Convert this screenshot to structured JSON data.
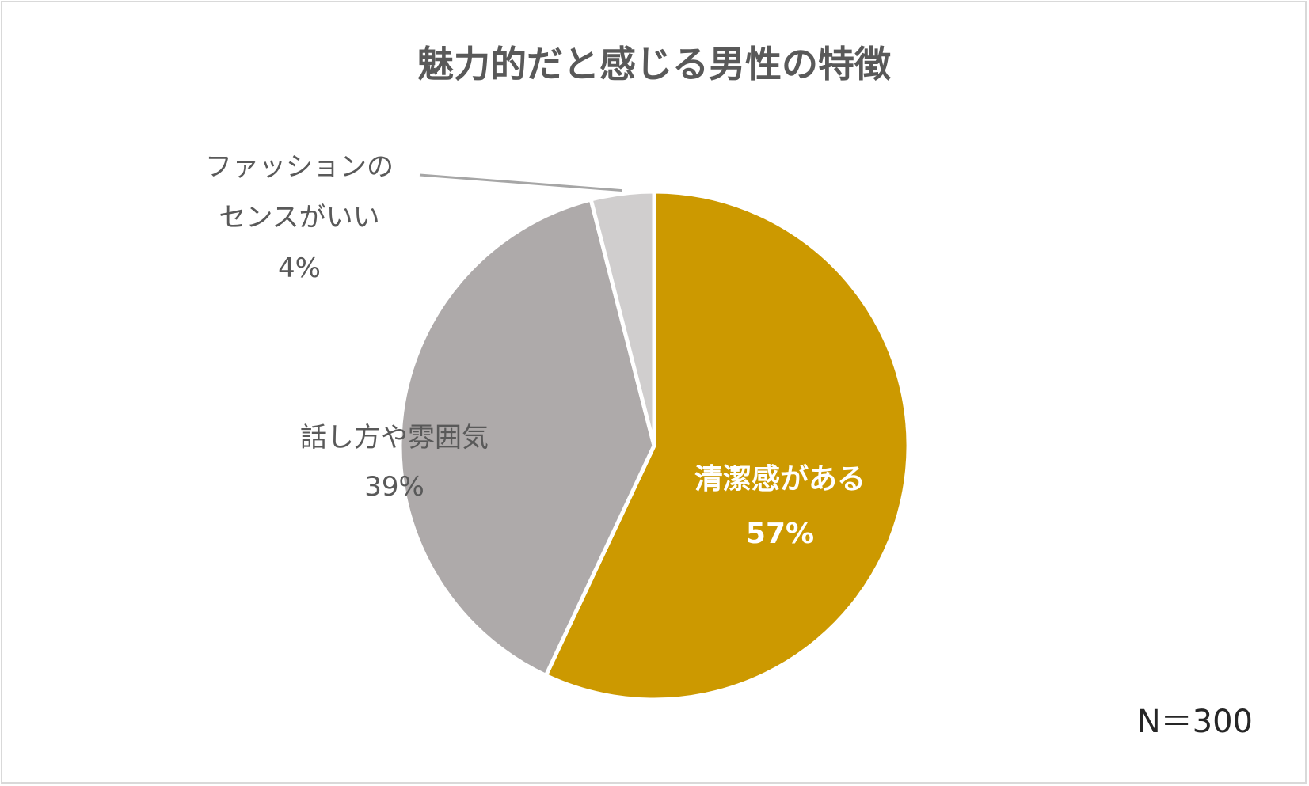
{
  "chart_data": {
    "type": "pie",
    "title": "魅力的だと感じる男性の特徴",
    "slices": [
      {
        "label": "清潔感がある",
        "value": 57,
        "value_label": "57%",
        "color": "#cc9900",
        "label_color": "#ffffff"
      },
      {
        "label": "話し方や雰囲気",
        "value": 39,
        "value_label": "39%",
        "color": "#aeaaaa",
        "label_color": "#595959"
      },
      {
        "label": "ファッションのセンスがいい",
        "label_lines": [
          "ファッションの",
          "センスがいい"
        ],
        "value": 4,
        "value_label": "4%",
        "color": "#d0cece",
        "label_color": "#595959"
      }
    ],
    "start_angle": "12 o'clock",
    "direction": "clockwise",
    "slice_border_color": "#ffffff",
    "leader_line_color": "#a6a6a6",
    "note": "N＝300"
  }
}
